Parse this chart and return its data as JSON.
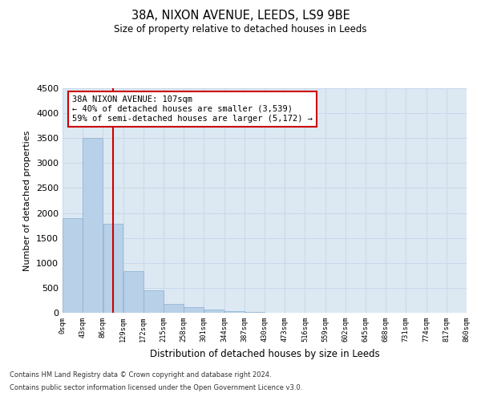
{
  "title": "38A, NIXON AVENUE, LEEDS, LS9 9BE",
  "subtitle": "Size of property relative to detached houses in Leeds",
  "xlabel": "Distribution of detached houses by size in Leeds",
  "ylabel": "Number of detached properties",
  "footer_line1": "Contains HM Land Registry data © Crown copyright and database right 2024.",
  "footer_line2": "Contains public sector information licensed under the Open Government Licence v3.0.",
  "annotation_line1": "38A NIXON AVENUE: 107sqm",
  "annotation_line2": "← 40% of detached houses are smaller (3,539)",
  "annotation_line3": "59% of semi-detached houses are larger (5,172) →",
  "bar_color": "#b8d0e8",
  "bar_edge_color": "#8ab0d0",
  "grid_color": "#c8d8eb",
  "background_color": "#dce8f2",
  "vline_color": "#cc0000",
  "annotation_box_color": "#cc0000",
  "bin_edges": [
    0,
    43,
    86,
    129,
    172,
    215,
    258,
    301,
    344,
    387,
    430,
    473,
    516,
    559,
    602,
    645,
    688,
    731,
    774,
    817,
    860
  ],
  "bar_heights": [
    1900,
    3500,
    1780,
    830,
    450,
    175,
    105,
    60,
    40,
    20,
    5,
    0,
    0,
    0,
    0,
    0,
    0,
    0,
    0,
    0
  ],
  "property_size": 107,
  "ylim": [
    0,
    4500
  ],
  "yticks": [
    0,
    500,
    1000,
    1500,
    2000,
    2500,
    3000,
    3500,
    4000,
    4500
  ]
}
